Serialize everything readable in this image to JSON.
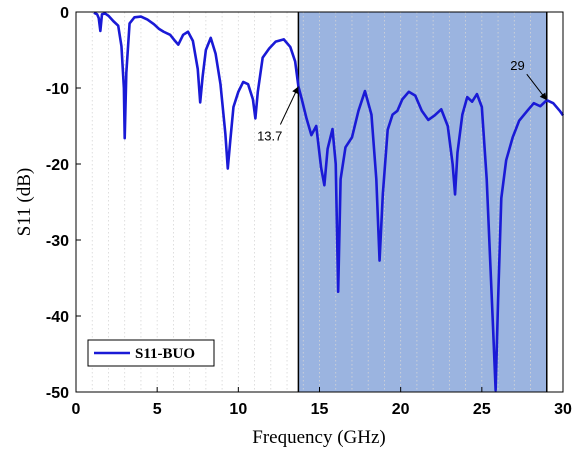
{
  "chart_data": {
    "type": "line",
    "title": "",
    "xlabel": "Frequency (GHz)",
    "ylabel": "S11 (dB)",
    "xlim": [
      0,
      30
    ],
    "ylim": [
      -50,
      0
    ],
    "x_ticks": [
      0,
      5,
      10,
      15,
      20,
      25,
      30
    ],
    "y_ticks": [
      0,
      -10,
      -20,
      -30,
      -40,
      -50
    ],
    "grid": "vertical minor dotted",
    "legend_position": "bottom-left",
    "colors": {
      "series": "#1a1ad6",
      "band_fill": "#7a9bd6",
      "band_edge": "#000000"
    },
    "shaded_band": {
      "x_start": 13.7,
      "x_end": 29
    },
    "annotations": [
      {
        "text": "13.7",
        "x": 13.7,
        "y": -9.8
      },
      {
        "text": "29",
        "x": 29,
        "y": -11.6
      }
    ],
    "series": [
      {
        "name": "S11-BUO",
        "x": [
          1.1,
          1.3,
          1.4,
          1.5,
          1.6,
          1.8,
          2.0,
          2.3,
          2.6,
          2.8,
          2.95,
          3.0,
          3.1,
          3.3,
          3.6,
          4.0,
          4.4,
          4.8,
          5.1,
          5.4,
          5.8,
          6.1,
          6.3,
          6.6,
          6.9,
          7.2,
          7.5,
          7.65,
          7.8,
          8.0,
          8.3,
          8.6,
          8.9,
          9.2,
          9.35,
          9.5,
          9.7,
          10.0,
          10.3,
          10.6,
          10.9,
          11.05,
          11.2,
          11.5,
          11.9,
          12.3,
          12.8,
          13.2,
          13.5,
          13.7,
          13.9,
          14.2,
          14.5,
          14.8,
          15.1,
          15.3,
          15.5,
          15.8,
          16.0,
          16.15,
          16.3,
          16.6,
          17.0,
          17.4,
          17.8,
          18.2,
          18.5,
          18.7,
          18.9,
          19.2,
          19.5,
          19.8,
          20.1,
          20.5,
          20.9,
          21.3,
          21.7,
          22.1,
          22.5,
          22.9,
          23.2,
          23.35,
          23.5,
          23.8,
          24.1,
          24.4,
          24.7,
          25.0,
          25.3,
          25.5,
          25.7,
          25.85,
          26.0,
          26.2,
          26.5,
          26.9,
          27.3,
          27.8,
          28.2,
          28.6,
          29.0,
          29.4,
          29.8,
          30.0
        ],
        "y": [
          -0.1,
          -0.3,
          -0.8,
          -2.5,
          -0.3,
          -0.2,
          -0.5,
          -1.2,
          -1.8,
          -4.5,
          -10.0,
          -16.6,
          -8.0,
          -1.5,
          -0.7,
          -0.6,
          -1.0,
          -1.6,
          -2.2,
          -2.6,
          -3.0,
          -3.8,
          -4.3,
          -3.0,
          -2.6,
          -3.8,
          -7.5,
          -11.9,
          -8.5,
          -5.0,
          -3.4,
          -5.5,
          -9.5,
          -16.0,
          -20.6,
          -17.0,
          -12.5,
          -10.5,
          -9.2,
          -9.5,
          -11.5,
          -14.0,
          -10.5,
          -6.0,
          -4.8,
          -3.9,
          -3.6,
          -4.6,
          -6.5,
          -9.8,
          -11.4,
          -14.0,
          -16.2,
          -15.0,
          -20.5,
          -22.8,
          -18.0,
          -15.4,
          -20.0,
          -36.8,
          -22.0,
          -17.8,
          -16.5,
          -13.0,
          -10.4,
          -13.5,
          -22.0,
          -32.7,
          -24.0,
          -15.5,
          -13.5,
          -13.0,
          -11.5,
          -10.5,
          -11.0,
          -13.0,
          -14.2,
          -13.6,
          -12.8,
          -15.0,
          -20.0,
          -24.0,
          -18.5,
          -13.5,
          -11.2,
          -11.8,
          -10.8,
          -12.5,
          -22.0,
          -32.0,
          -42.0,
          -49.8,
          -38.0,
          -24.5,
          -19.5,
          -16.5,
          -14.3,
          -13.0,
          -12.0,
          -12.4,
          -11.6,
          -12.0,
          -13.0,
          -13.6
        ]
      }
    ]
  }
}
